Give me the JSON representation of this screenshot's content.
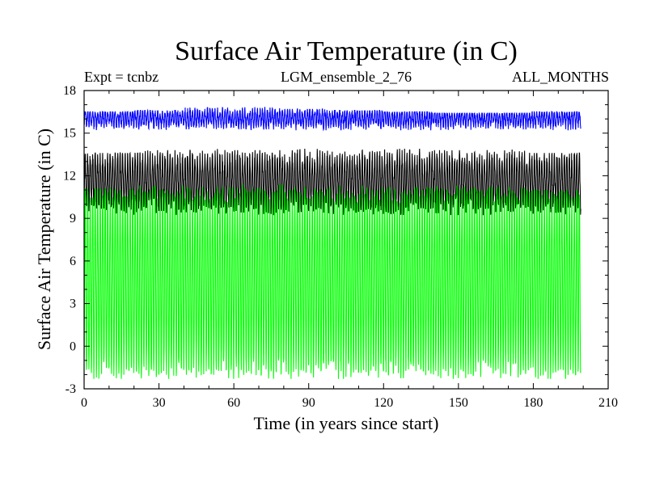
{
  "chart_data": {
    "type": "line",
    "title": "Surface Air Temperature (in C)",
    "header": {
      "left": "Expt = tcnbz",
      "center": "LGM_ensemble_2_76",
      "right": "ALL_MONTHS"
    },
    "xlabel": "Time (in years since start)",
    "ylabel": "Surface Air Temperature (in C)",
    "xlim": [
      0,
      210
    ],
    "ylim": [
      -3,
      18
    ],
    "xticks": [
      0,
      30,
      60,
      90,
      120,
      150,
      180,
      210
    ],
    "yticks": [
      -3,
      0,
      3,
      6,
      9,
      12,
      15,
      18
    ],
    "x_end": 199,
    "series": [
      {
        "name": "upper (blue)",
        "color": "#0000ff",
        "mean": 16.0,
        "monthly_range": [
          15.2,
          16.9
        ],
        "values_annual_max": [
          16.5,
          16.6,
          16.8,
          16.9,
          16.7,
          16.6,
          16.5,
          16.4,
          16.4,
          16.5
        ]
      },
      {
        "name": "middle (black)",
        "color": "#000000",
        "mean": 12.3,
        "monthly_range": [
          9.2,
          14.0
        ],
        "values_annual_max": [
          13.6,
          13.8,
          13.9,
          13.8,
          13.9,
          13.8,
          13.9,
          13.8,
          13.9,
          13.6
        ]
      },
      {
        "name": "lower (green)",
        "color": "#00ff00",
        "mean": 5.2,
        "monthly_range": [
          -2.3,
          11.4
        ],
        "values_annual_max": [
          11.1,
          11.3,
          11.2,
          11.4,
          11.2,
          11.3,
          11.2,
          11.3,
          11.2,
          11.0
        ]
      }
    ]
  }
}
